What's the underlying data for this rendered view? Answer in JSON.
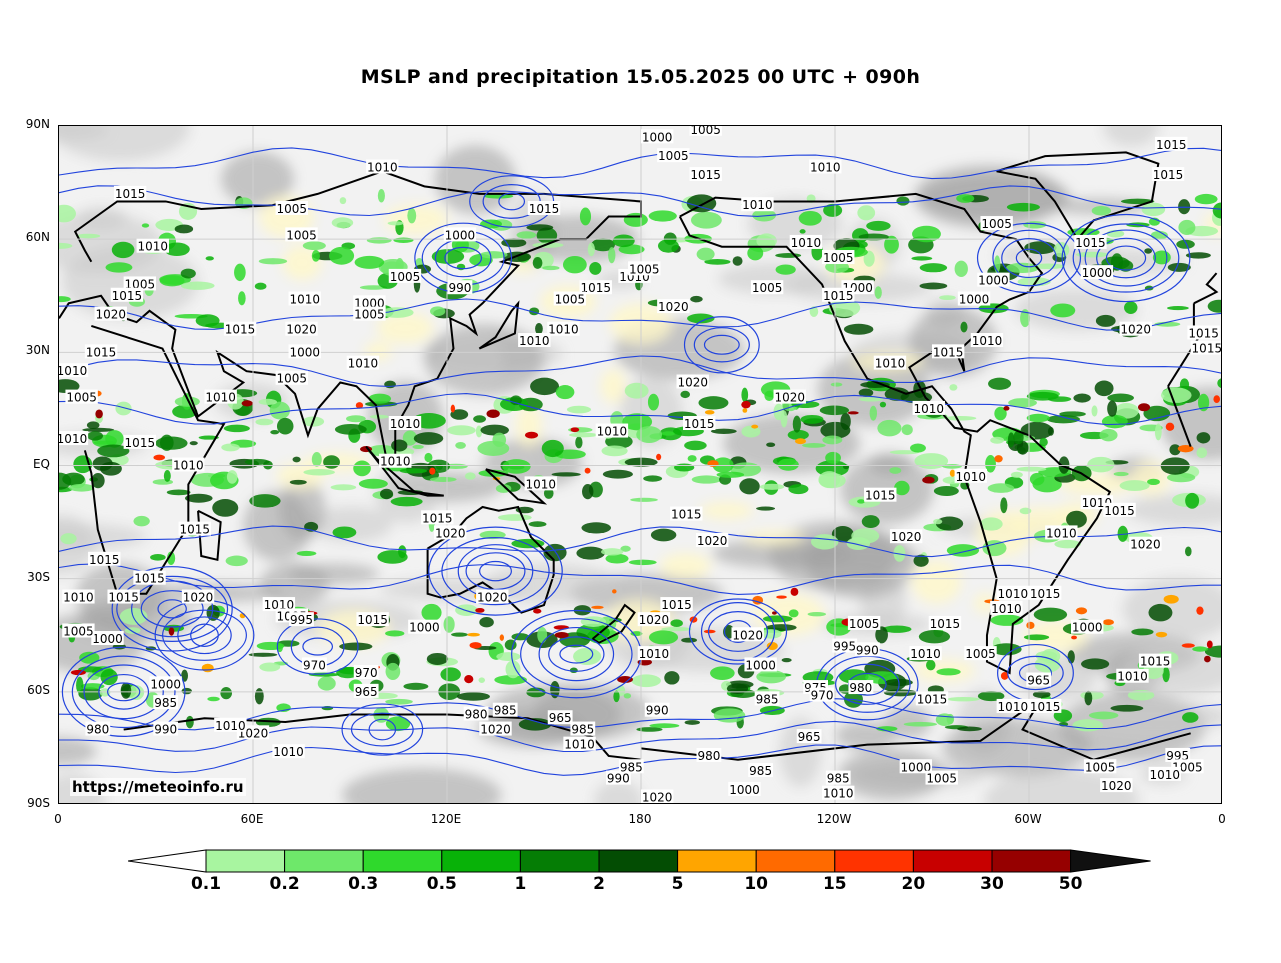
{
  "title": "MSLP and precipitation 15.05.2025 00 UTC + 090h",
  "source": "https://meteoinfo.ru",
  "map": {
    "projection": "equirectangular",
    "lon_range": [
      0,
      360
    ],
    "lat_range": [
      -90,
      90
    ],
    "lat_ticks": [
      "90N",
      "60N",
      "30N",
      "EQ",
      "30S",
      "60S",
      "90S"
    ],
    "lon_ticks": [
      "0",
      "60E",
      "120E",
      "180",
      "120W",
      "60W",
      "0"
    ],
    "gridlines": true,
    "isobar_color": "#2244dd",
    "coastline_color": "#000000",
    "background_cloud_color": "#bdbdbd",
    "isobar_labels": [
      {
        "text": "1000",
        "lon": 185,
        "lat": 87
      },
      {
        "text": "1005",
        "lon": 200,
        "lat": 89
      },
      {
        "text": "1005",
        "lon": 190,
        "lat": 82
      },
      {
        "text": "1015",
        "lon": 200,
        "lat": 77
      },
      {
        "text": "1010",
        "lon": 237,
        "lat": 79
      },
      {
        "text": "1015",
        "lon": 344,
        "lat": 85
      },
      {
        "text": "1015",
        "lon": 343,
        "lat": 77
      },
      {
        "text": "1015",
        "lon": 22,
        "lat": 72
      },
      {
        "text": "1010",
        "lon": 100,
        "lat": 79
      },
      {
        "text": "1005",
        "lon": 72,
        "lat": 68
      },
      {
        "text": "1005",
        "lon": 75,
        "lat": 61
      },
      {
        "text": "1010",
        "lon": 29,
        "lat": 58
      },
      {
        "text": "1000",
        "lon": 124,
        "lat": 61
      },
      {
        "text": "1015",
        "lon": 150,
        "lat": 68
      },
      {
        "text": "1005",
        "lon": 107,
        "lat": 50
      },
      {
        "text": "990",
        "lon": 124,
        "lat": 47
      },
      {
        "text": "1005",
        "lon": 25,
        "lat": 48
      },
      {
        "text": "1015",
        "lon": 21,
        "lat": 45
      },
      {
        "text": "1020",
        "lon": 16,
        "lat": 40
      },
      {
        "text": "1010",
        "lon": 76,
        "lat": 44
      },
      {
        "text": "1000",
        "lon": 96,
        "lat": 43
      },
      {
        "text": "1005",
        "lon": 96,
        "lat": 40
      },
      {
        "text": "1015",
        "lon": 56,
        "lat": 36
      },
      {
        "text": "1020",
        "lon": 75,
        "lat": 36
      },
      {
        "text": "1010",
        "lon": 178,
        "lat": 50
      },
      {
        "text": "1005",
        "lon": 181,
        "lat": 52
      },
      {
        "text": "1015",
        "lon": 166,
        "lat": 47
      },
      {
        "text": "1005",
        "lon": 158,
        "lat": 44
      },
      {
        "text": "1020",
        "lon": 190,
        "lat": 42
      },
      {
        "text": "1010",
        "lon": 156,
        "lat": 36
      },
      {
        "text": "1010",
        "lon": 147,
        "lat": 33
      },
      {
        "text": "1005",
        "lon": 219,
        "lat": 47
      },
      {
        "text": "1010",
        "lon": 231,
        "lat": 59
      },
      {
        "text": "1010",
        "lon": 216,
        "lat": 69
      },
      {
        "text": "1005",
        "lon": 241,
        "lat": 55
      },
      {
        "text": "1000",
        "lon": 247,
        "lat": 47
      },
      {
        "text": "1015",
        "lon": 241,
        "lat": 45
      },
      {
        "text": "1005",
        "lon": 290,
        "lat": 64
      },
      {
        "text": "1000",
        "lon": 289,
        "lat": 49
      },
      {
        "text": "1000",
        "lon": 283,
        "lat": 44
      },
      {
        "text": "1010",
        "lon": 287,
        "lat": 33
      },
      {
        "text": "1015",
        "lon": 319,
        "lat": 59
      },
      {
        "text": "1000",
        "lon": 321,
        "lat": 51
      },
      {
        "text": "1020",
        "lon": 333,
        "lat": 36
      },
      {
        "text": "1015",
        "lon": 354,
        "lat": 35
      },
      {
        "text": "1015",
        "lon": 355,
        "lat": 31
      },
      {
        "text": "1015",
        "lon": 275,
        "lat": 30
      },
      {
        "text": "1010",
        "lon": 257,
        "lat": 27
      },
      {
        "text": "1010",
        "lon": 269,
        "lat": 15
      },
      {
        "text": "1020",
        "lon": 196,
        "lat": 22
      },
      {
        "text": "1020",
        "lon": 226,
        "lat": 18
      },
      {
        "text": "1015",
        "lon": 198,
        "lat": 11
      },
      {
        "text": "1010",
        "lon": 171,
        "lat": 9
      },
      {
        "text": "1010",
        "lon": 107,
        "lat": 11
      },
      {
        "text": "1010",
        "lon": 104,
        "lat": 1
      },
      {
        "text": "1010",
        "lon": 149,
        "lat": -5
      },
      {
        "text": "1015",
        "lon": 254,
        "lat": -8
      },
      {
        "text": "1010",
        "lon": 282,
        "lat": -3
      },
      {
        "text": "1010",
        "lon": 310,
        "lat": -18
      },
      {
        "text": "1010",
        "lon": 321,
        "lat": -10
      },
      {
        "text": "1015",
        "lon": 328,
        "lat": -12
      },
      {
        "text": "1020",
        "lon": 262,
        "lat": -19
      },
      {
        "text": "1020",
        "lon": 336,
        "lat": -21
      },
      {
        "text": "1015",
        "lon": 14,
        "lat": -25
      },
      {
        "text": "1015",
        "lon": 28,
        "lat": -30
      },
      {
        "text": "1010",
        "lon": 6,
        "lat": -35
      },
      {
        "text": "1010",
        "lon": 40,
        "lat": 0
      },
      {
        "text": "1015",
        "lon": 42,
        "lat": -17
      },
      {
        "text": "1005",
        "lon": 7,
        "lat": 18
      },
      {
        "text": "1010",
        "lon": 4,
        "lat": 25
      },
      {
        "text": "1010",
        "lon": 4,
        "lat": 7
      },
      {
        "text": "1015",
        "lon": 13,
        "lat": 30
      },
      {
        "text": "1010",
        "lon": 50,
        "lat": 18
      },
      {
        "text": "1015",
        "lon": 25,
        "lat": 6
      },
      {
        "text": "1000",
        "lon": 76,
        "lat": 30
      },
      {
        "text": "1005",
        "lon": 72,
        "lat": 23
      },
      {
        "text": "1010",
        "lon": 94,
        "lat": 27
      },
      {
        "text": "1015",
        "lon": 117,
        "lat": -14
      },
      {
        "text": "1020",
        "lon": 121,
        "lat": -18
      },
      {
        "text": "1015",
        "lon": 194,
        "lat": -13
      },
      {
        "text": "1020",
        "lon": 202,
        "lat": -20
      },
      {
        "text": "1015",
        "lon": 20,
        "lat": -35
      },
      {
        "text": "1020",
        "lon": 43,
        "lat": -35
      },
      {
        "text": "1000",
        "lon": 15,
        "lat": -46
      },
      {
        "text": "1005",
        "lon": 6,
        "lat": -44
      },
      {
        "text": "1010",
        "lon": 68,
        "lat": -37
      },
      {
        "text": "1005",
        "lon": 72,
        "lat": -40
      },
      {
        "text": "995",
        "lon": 75,
        "lat": -41
      },
      {
        "text": "970",
        "lon": 79,
        "lat": -53
      },
      {
        "text": "970",
        "lon": 95,
        "lat": -55
      },
      {
        "text": "965",
        "lon": 95,
        "lat": -60
      },
      {
        "text": "1015",
        "lon": 97,
        "lat": -41
      },
      {
        "text": "1000",
        "lon": 113,
        "lat": -43
      },
      {
        "text": "1020",
        "lon": 134,
        "lat": -35
      },
      {
        "text": "1015",
        "lon": 191,
        "lat": -37
      },
      {
        "text": "1020",
        "lon": 184,
        "lat": -41
      },
      {
        "text": "1010",
        "lon": 184,
        "lat": -50
      },
      {
        "text": "1020",
        "lon": 213,
        "lat": -45
      },
      {
        "text": "1000",
        "lon": 217,
        "lat": -53
      },
      {
        "text": "985",
        "lon": 219,
        "lat": -62
      },
      {
        "text": "975",
        "lon": 234,
        "lat": -59
      },
      {
        "text": "970",
        "lon": 236,
        "lat": -61
      },
      {
        "text": "995",
        "lon": 243,
        "lat": -48
      },
      {
        "text": "990",
        "lon": 250,
        "lat": -49
      },
      {
        "text": "980",
        "lon": 248,
        "lat": -59
      },
      {
        "text": "1005",
        "lon": 249,
        "lat": -42
      },
      {
        "text": "1015",
        "lon": 274,
        "lat": -42
      },
      {
        "text": "1010",
        "lon": 268,
        "lat": -50
      },
      {
        "text": "1005",
        "lon": 285,
        "lat": -50
      },
      {
        "text": "1015",
        "lon": 270,
        "lat": -62
      },
      {
        "text": "1010",
        "lon": 293,
        "lat": -38
      },
      {
        "text": "1010",
        "lon": 295,
        "lat": -34
      },
      {
        "text": "1015",
        "lon": 305,
        "lat": -34
      },
      {
        "text": "1000",
        "lon": 318,
        "lat": -43
      },
      {
        "text": "965",
        "lon": 303,
        "lat": -57
      },
      {
        "text": "1015",
        "lon": 339,
        "lat": -52
      },
      {
        "text": "1010",
        "lon": 332,
        "lat": -56
      },
      {
        "text": "1015",
        "lon": 305,
        "lat": -64
      },
      {
        "text": "1010",
        "lon": 295,
        "lat": -64
      },
      {
        "text": "1000",
        "lon": 33,
        "lat": -58
      },
      {
        "text": "985",
        "lon": 33,
        "lat": -63
      },
      {
        "text": "990",
        "lon": 33,
        "lat": -70
      },
      {
        "text": "980",
        "lon": 12,
        "lat": -70
      },
      {
        "text": "1020",
        "lon": 60,
        "lat": -71
      },
      {
        "text": "1010",
        "lon": 71,
        "lat": -76
      },
      {
        "text": "1010",
        "lon": 53,
        "lat": -69
      },
      {
        "text": "980",
        "lon": 129,
        "lat": -66
      },
      {
        "text": "985",
        "lon": 138,
        "lat": -65
      },
      {
        "text": "1020",
        "lon": 135,
        "lat": -70
      },
      {
        "text": "965",
        "lon": 155,
        "lat": -67
      },
      {
        "text": "985",
        "lon": 162,
        "lat": -70
      },
      {
        "text": "1010",
        "lon": 161,
        "lat": -74
      },
      {
        "text": "990",
        "lon": 185,
        "lat": -65
      },
      {
        "text": "980",
        "lon": 201,
        "lat": -77
      },
      {
        "text": "985",
        "lon": 217,
        "lat": -81
      },
      {
        "text": "1000",
        "lon": 212,
        "lat": -86
      },
      {
        "text": "990",
        "lon": 173,
        "lat": -83
      },
      {
        "text": "985",
        "lon": 177,
        "lat": -80
      },
      {
        "text": "1020",
        "lon": 185,
        "lat": -88
      },
      {
        "text": "1010",
        "lon": 241,
        "lat": -87
      },
      {
        "text": "985",
        "lon": 241,
        "lat": -83
      },
      {
        "text": "965",
        "lon": 232,
        "lat": -72
      },
      {
        "text": "1000",
        "lon": 265,
        "lat": -80
      },
      {
        "text": "1005",
        "lon": 273,
        "lat": -83
      },
      {
        "text": "1005",
        "lon": 322,
        "lat": -80
      },
      {
        "text": "1020",
        "lon": 327,
        "lat": -85
      },
      {
        "text": "995",
        "lon": 346,
        "lat": -77
      },
      {
        "text": "1005",
        "lon": 349,
        "lat": -80
      },
      {
        "text": "1010",
        "lon": 342,
        "lat": -82
      }
    ]
  },
  "legend": {
    "title": "",
    "levels": [
      "0.1",
      "0.2",
      "0.3",
      "0.5",
      "1",
      "2",
      "5",
      "10",
      "15",
      "20",
      "30",
      "50"
    ],
    "colors": [
      "#ffffff",
      "#a8f5a0",
      "#6ee86a",
      "#2fd92c",
      "#08b208",
      "#057d05",
      "#034d03",
      "#ffa500",
      "#ff6a00",
      "#ff3300",
      "#c80000",
      "#960000",
      "#101010"
    ],
    "extend": "both"
  }
}
